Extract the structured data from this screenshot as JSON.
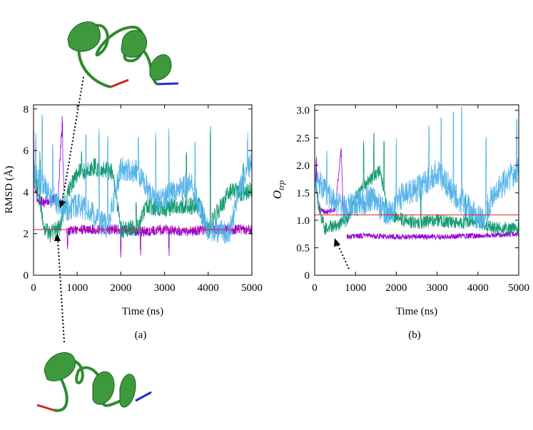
{
  "panels": [
    {
      "label": "(a)",
      "chart_data": {
        "type": "line",
        "xlabel": "Time (ns)",
        "ylabel": "RMSD (Å)",
        "xlim": [
          0,
          5000
        ],
        "ylim": [
          0,
          8.2
        ],
        "xticks": [
          0,
          1000,
          2000,
          3000,
          4000,
          5000
        ],
        "yticks": [
          0,
          2,
          4,
          6,
          8
        ],
        "reference_line": {
          "y": 2.2,
          "color": "#e41a1c"
        },
        "series": [
          {
            "color": "#9400d3",
            "segments": [
              [
                [
                  0,
                  4.6
                ],
                [
                  80,
                  3.7
                ],
                [
                  160,
                  3.6
                ],
                [
                  240,
                  3.5
                ],
                [
                  320,
                  3.6
                ],
                [
                  400,
                  3.5
                ],
                [
                  480,
                  3.7
                ],
                [
                  560,
                  3.6
                ],
                [
                  640,
                  7.0
                ],
                [
                  700,
                  4.2
                ]
              ],
              [
                [
                  760,
                  2.1
                ],
                [
                  1000,
                  2.2
                ],
                [
                  1500,
                  2.2
                ],
                [
                  2000,
                  2.2
                ],
                [
                  2500,
                  2.1
                ],
                [
                  3000,
                  2.2
                ],
                [
                  3500,
                  2.1
                ],
                [
                  4000,
                  2.2
                ],
                [
                  4500,
                  2.2
                ],
                [
                  5000,
                  2.2
                ]
              ]
            ],
            "noise": 0.25,
            "spikes": [
              [
                0,
                7.5
              ],
              [
                660,
                7.8
              ],
              [
                780,
                1.5
              ],
              [
                2000,
                1.4
              ],
              [
                2450,
                1.3
              ],
              [
                3100,
                1.4
              ]
            ]
          },
          {
            "color": "#159a72",
            "segments": [
              [
                [
                  0,
                  5.5
                ],
                [
                  120,
                  3.8
                ],
                [
                  260,
                  2.1
                ],
                [
                  400,
                  2.0
                ],
                [
                  600,
                  2.3
                ],
                [
                  800,
                  4.0
                ],
                [
                  1000,
                  4.9
                ],
                [
                  1400,
                  5.2
                ],
                [
                  1800,
                  5.0
                ],
                [
                  2000,
                  2.2
                ],
                [
                  2400,
                  2.3
                ],
                [
                  2600,
                  3.3
                ],
                [
                  3000,
                  3.2
                ],
                [
                  3400,
                  3.4
                ],
                [
                  3800,
                  3.3
                ],
                [
                  4000,
                  2.2
                ],
                [
                  4200,
                  3.0
                ],
                [
                  4500,
                  4.0
                ],
                [
                  5000,
                  4.0
                ]
              ]
            ],
            "noise": 0.45,
            "spikes": [
              [
                150,
                6.0
              ],
              [
                1100,
                6.0
              ],
              [
                2350,
                4.0
              ],
              [
                3500,
                6.2
              ],
              [
                4050,
                7.2
              ],
              [
                4800,
                5.5
              ]
            ]
          },
          {
            "color": "#56b4e9",
            "segments": [
              [
                [
                  0,
                  4.8
                ],
                [
                  200,
                  4.5
                ],
                [
                  400,
                  3.8
                ],
                [
                  600,
                  3.4
                ],
                [
                  800,
                  3.2
                ],
                [
                  1000,
                  3.4
                ],
                [
                  1300,
                  3.0
                ],
                [
                  1700,
                  2.3
                ],
                [
                  2000,
                  5.1
                ],
                [
                  2400,
                  5.0
                ],
                [
                  2800,
                  3.5
                ],
                [
                  3200,
                  4.0
                ],
                [
                  3600,
                  4.4
                ],
                [
                  4000,
                  2.2
                ],
                [
                  4500,
                  2.1
                ],
                [
                  4700,
                  4.0
                ],
                [
                  5000,
                  5.5
                ]
              ]
            ],
            "noise": 0.6,
            "spikes": [
              [
                50,
                7.0
              ],
              [
                200,
                7.8
              ],
              [
                440,
                6.5
              ],
              [
                1200,
                6.9
              ],
              [
                1500,
                7.2
              ],
              [
                1700,
                6.8
              ],
              [
                2400,
                7.1
              ],
              [
                2800,
                6.9
              ],
              [
                3100,
                7.2
              ],
              [
                3700,
                6.5
              ],
              [
                4900,
                6.9
              ]
            ]
          }
        ]
      }
    },
    {
      "label": "(b)",
      "chart_data": {
        "type": "line",
        "xlabel": "Time (ns)",
        "ylabel": "O",
        "ylabel_sub": "trp",
        "xlim": [
          0,
          5000
        ],
        "ylim": [
          0,
          3.1
        ],
        "xticks": [
          0,
          1000,
          2000,
          3000,
          4000,
          5000
        ],
        "yticks": [
          0,
          0.5,
          1.0,
          1.5,
          2.0,
          2.5,
          3.0
        ],
        "ytick_labels": [
          "0",
          "0.5",
          "1.0",
          "1.5",
          "2.0",
          "2.5",
          "3.0"
        ],
        "reference_line": {
          "y": 1.1,
          "color": "#e41a1c"
        },
        "series": [
          {
            "color": "#9400d3",
            "segments": [
              [
                [
                  0,
                  1.9
                ],
                [
                  100,
                  1.2
                ],
                [
                  300,
                  1.15
                ],
                [
                  500,
                  1.2
                ],
                [
                  650,
                  2.3
                ],
                [
                  700,
                  1.2
                ]
              ],
              [
                [
                  790,
                  0.7
                ],
                [
                  1200,
                  0.72
                ],
                [
                  2000,
                  0.7
                ],
                [
                  3000,
                  0.7
                ],
                [
                  4000,
                  0.72
                ],
                [
                  5000,
                  0.75
                ]
              ]
            ],
            "noise": 0.05,
            "spikes": [
              [
                40,
                2.2
              ],
              [
                720,
                2.5
              ],
              [
                750,
                2.4
              ]
            ]
          },
          {
            "color": "#159a72",
            "segments": [
              [
                [
                  0,
                  1.7
                ],
                [
                  150,
                  1.1
                ],
                [
                  250,
                  0.85
                ],
                [
                  500,
                  0.9
                ],
                [
                  800,
                  1.0
                ],
                [
                  1000,
                  1.4
                ],
                [
                  1300,
                  1.7
                ],
                [
                  1600,
                  1.9
                ],
                [
                  1800,
                  1.1
                ],
                [
                  2200,
                  1.0
                ],
                [
                  2600,
                  0.95
                ],
                [
                  3000,
                  1.0
                ],
                [
                  3500,
                  0.95
                ],
                [
                  3900,
                  1.0
                ],
                [
                  4200,
                  0.9
                ],
                [
                  4500,
                  0.85
                ],
                [
                  5000,
                  0.85
                ]
              ]
            ],
            "noise": 0.12,
            "spikes": [
              [
                1200,
                2.5
              ],
              [
                1450,
                2.6
              ],
              [
                1700,
                2.6
              ],
              [
                2600,
                1.6
              ],
              [
                3700,
                1.6
              ]
            ]
          },
          {
            "color": "#56b4e9",
            "segments": [
              [
                [
                  0,
                  1.8
                ],
                [
                  200,
                  1.6
                ],
                [
                  400,
                  1.4
                ],
                [
                  700,
                  1.2
                ],
                [
                  1000,
                  1.3
                ],
                [
                  1400,
                  1.4
                ],
                [
                  1800,
                  1.1
                ],
                [
                  2200,
                  1.5
                ],
                [
                  2600,
                  1.6
                ],
                [
                  3000,
                  1.9
                ],
                [
                  3400,
                  1.5
                ],
                [
                  3800,
                  1.2
                ],
                [
                  4100,
                  1.0
                ],
                [
                  4400,
                  1.5
                ],
                [
                  4800,
                  1.8
                ],
                [
                  5000,
                  1.9
                ]
              ]
            ],
            "noise": 0.25,
            "spikes": [
              [
                300,
                2.3
              ],
              [
                2000,
                2.6
              ],
              [
                2800,
                2.8
              ],
              [
                3100,
                3.0
              ],
              [
                3400,
                3.05
              ],
              [
                3600,
                3.1
              ],
              [
                4200,
                2.6
              ],
              [
                4950,
                3.0
              ]
            ]
          }
        ]
      }
    }
  ]
}
